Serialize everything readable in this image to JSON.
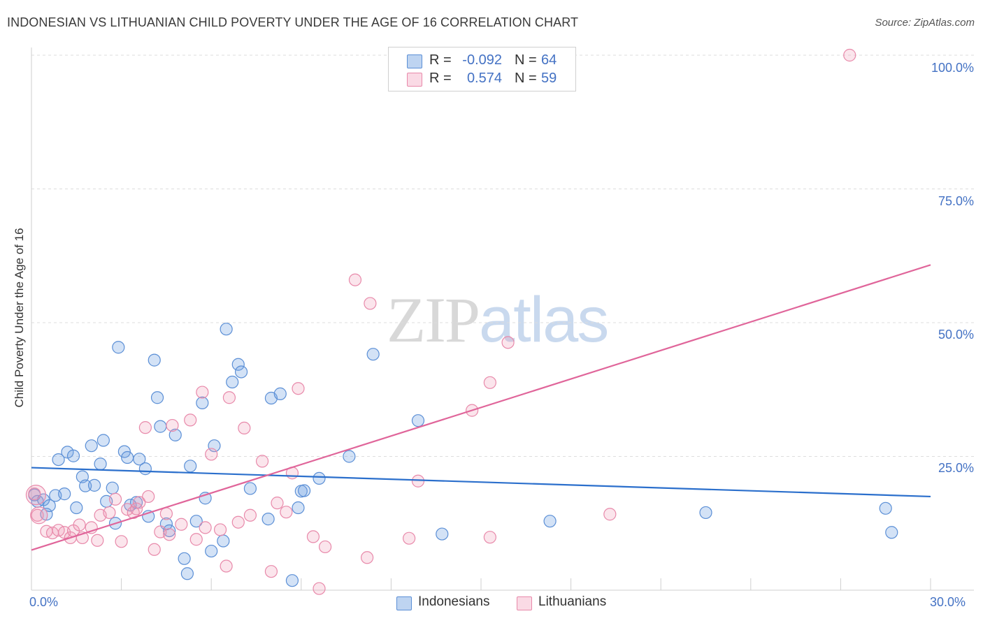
{
  "title": "INDONESIAN VS LITHUANIAN CHILD POVERTY UNDER THE AGE OF 16 CORRELATION CHART",
  "source": "Source: ZipAtlas.com",
  "watermark": {
    "part1": "ZIP",
    "part2": "atlas"
  },
  "colors": {
    "indonesians_fill": "rgba(110,160,225,0.30)",
    "indonesians_stroke": "#5b8fd6",
    "indonesians_line": "#2b6fcc",
    "lithuanians_fill": "rgba(240,150,180,0.25)",
    "lithuanians_stroke": "#e889aa",
    "lithuanians_line": "#e0659a",
    "grid": "#dddddd",
    "axis_text": "#4472c4"
  },
  "legend": {
    "row1": {
      "r_label": "R =",
      "r_value": "-0.092",
      "n_label": "N =",
      "n_value": "64"
    },
    "row2": {
      "r_label": "R =",
      "r_value": "0.574",
      "n_label": "N =",
      "n_value": "59"
    }
  },
  "chart_data": {
    "type": "scatter",
    "title": "INDONESIAN VS LITHUANIAN CHILD POVERTY UNDER THE AGE OF 16 CORRELATION CHART",
    "xlabel": "",
    "ylabel": "Child Poverty Under the Age of 16",
    "xlim": [
      0,
      30
    ],
    "ylim": [
      0,
      100
    ],
    "x_tick_labels": [
      "0.0%",
      "30.0%"
    ],
    "y_ticks": [
      25,
      50,
      75,
      100
    ],
    "y_tick_labels": [
      "25.0%",
      "50.0%",
      "75.0%",
      "100.0%"
    ],
    "grid": true,
    "legend_position": "top-center",
    "bottom_legend": [
      "Indonesians",
      "Lithuanians"
    ],
    "series": [
      {
        "name": "Indonesians",
        "r": -0.092,
        "n": 64,
        "trend": {
          "x": [
            0,
            30
          ],
          "y": [
            22.9,
            17.5
          ]
        },
        "points": [
          [
            0.1,
            17.8
          ],
          [
            0.2,
            16.6
          ],
          [
            0.4,
            16.9
          ],
          [
            0.5,
            14.2
          ],
          [
            0.6,
            15.8
          ],
          [
            0.8,
            17.7
          ],
          [
            0.9,
            24.4
          ],
          [
            1.1,
            18.0
          ],
          [
            1.2,
            25.8
          ],
          [
            1.4,
            25.1
          ],
          [
            1.5,
            15.4
          ],
          [
            1.7,
            21.2
          ],
          [
            1.8,
            19.5
          ],
          [
            2.0,
            27.0
          ],
          [
            2.1,
            19.6
          ],
          [
            2.3,
            23.6
          ],
          [
            2.4,
            28.0
          ],
          [
            2.5,
            16.6
          ],
          [
            2.7,
            19.1
          ],
          [
            2.8,
            12.5
          ],
          [
            2.9,
            45.4
          ],
          [
            3.1,
            25.9
          ],
          [
            3.2,
            24.8
          ],
          [
            3.3,
            15.9
          ],
          [
            3.5,
            16.4
          ],
          [
            3.6,
            24.5
          ],
          [
            3.8,
            22.7
          ],
          [
            3.9,
            13.8
          ],
          [
            4.1,
            43.0
          ],
          [
            4.2,
            36.0
          ],
          [
            4.3,
            30.6
          ],
          [
            4.5,
            12.4
          ],
          [
            4.6,
            11.1
          ],
          [
            4.8,
            29.0
          ],
          [
            5.1,
            5.9
          ],
          [
            5.3,
            23.2
          ],
          [
            5.5,
            12.9
          ],
          [
            5.7,
            35.0
          ],
          [
            5.8,
            17.2
          ],
          [
            6.0,
            7.3
          ],
          [
            6.1,
            27.0
          ],
          [
            6.4,
            9.2
          ],
          [
            6.5,
            48.8
          ],
          [
            6.7,
            38.9
          ],
          [
            6.9,
            42.2
          ],
          [
            7.0,
            40.8
          ],
          [
            7.3,
            19.0
          ],
          [
            7.9,
            13.3
          ],
          [
            8.0,
            35.9
          ],
          [
            8.3,
            36.7
          ],
          [
            8.7,
            1.8
          ],
          [
            8.9,
            15.4
          ],
          [
            9.0,
            18.5
          ],
          [
            9.1,
            18.6
          ],
          [
            9.6,
            20.9
          ],
          [
            10.6,
            25.0
          ],
          [
            11.4,
            44.1
          ],
          [
            12.9,
            31.7
          ],
          [
            13.7,
            10.5
          ],
          [
            17.3,
            12.9
          ],
          [
            22.5,
            14.5
          ],
          [
            28.5,
            15.3
          ],
          [
            28.7,
            10.8
          ],
          [
            5.2,
            3.1
          ]
        ]
      },
      {
        "name": "Lithuanians",
        "r": 0.574,
        "n": 59,
        "trend": {
          "x": [
            0,
            30
          ],
          "y": [
            7.5,
            60.8
          ]
        },
        "points": [
          [
            0.1,
            18.0
          ],
          [
            0.2,
            14.0
          ],
          [
            0.5,
            11.0
          ],
          [
            0.7,
            10.7
          ],
          [
            0.9,
            11.2
          ],
          [
            1.1,
            10.8
          ],
          [
            1.3,
            9.8
          ],
          [
            1.4,
            11.1
          ],
          [
            1.6,
            12.2
          ],
          [
            1.7,
            9.8
          ],
          [
            2.0,
            11.7
          ],
          [
            2.2,
            9.3
          ],
          [
            2.3,
            14.0
          ],
          [
            2.6,
            14.5
          ],
          [
            2.8,
            17.0
          ],
          [
            3.0,
            9.1
          ],
          [
            3.2,
            15.1
          ],
          [
            3.4,
            14.5
          ],
          [
            3.5,
            15.2
          ],
          [
            3.6,
            16.4
          ],
          [
            3.8,
            30.4
          ],
          [
            3.9,
            17.5
          ],
          [
            4.1,
            7.6
          ],
          [
            4.3,
            10.9
          ],
          [
            4.5,
            14.3
          ],
          [
            4.6,
            10.4
          ],
          [
            4.7,
            30.8
          ],
          [
            5.0,
            12.3
          ],
          [
            5.3,
            31.8
          ],
          [
            5.5,
            9.5
          ],
          [
            5.7,
            37.0
          ],
          [
            5.8,
            11.7
          ],
          [
            6.0,
            25.4
          ],
          [
            6.3,
            11.3
          ],
          [
            6.5,
            4.5
          ],
          [
            6.6,
            36.0
          ],
          [
            6.9,
            12.7
          ],
          [
            7.1,
            30.3
          ],
          [
            7.3,
            14.0
          ],
          [
            7.7,
            24.1
          ],
          [
            8.0,
            3.5
          ],
          [
            8.2,
            16.3
          ],
          [
            8.5,
            14.6
          ],
          [
            8.7,
            21.9
          ],
          [
            8.9,
            37.7
          ],
          [
            9.4,
            10.0
          ],
          [
            9.6,
            0.3
          ],
          [
            9.8,
            8.1
          ],
          [
            10.8,
            58.0
          ],
          [
            11.2,
            6.1
          ],
          [
            11.3,
            53.6
          ],
          [
            12.6,
            9.7
          ],
          [
            12.9,
            20.4
          ],
          [
            14.7,
            33.6
          ],
          [
            15.3,
            38.8
          ],
          [
            15.9,
            46.3
          ],
          [
            15.3,
            9.9
          ],
          [
            19.3,
            14.2
          ],
          [
            27.3,
            100.0
          ]
        ]
      }
    ]
  }
}
